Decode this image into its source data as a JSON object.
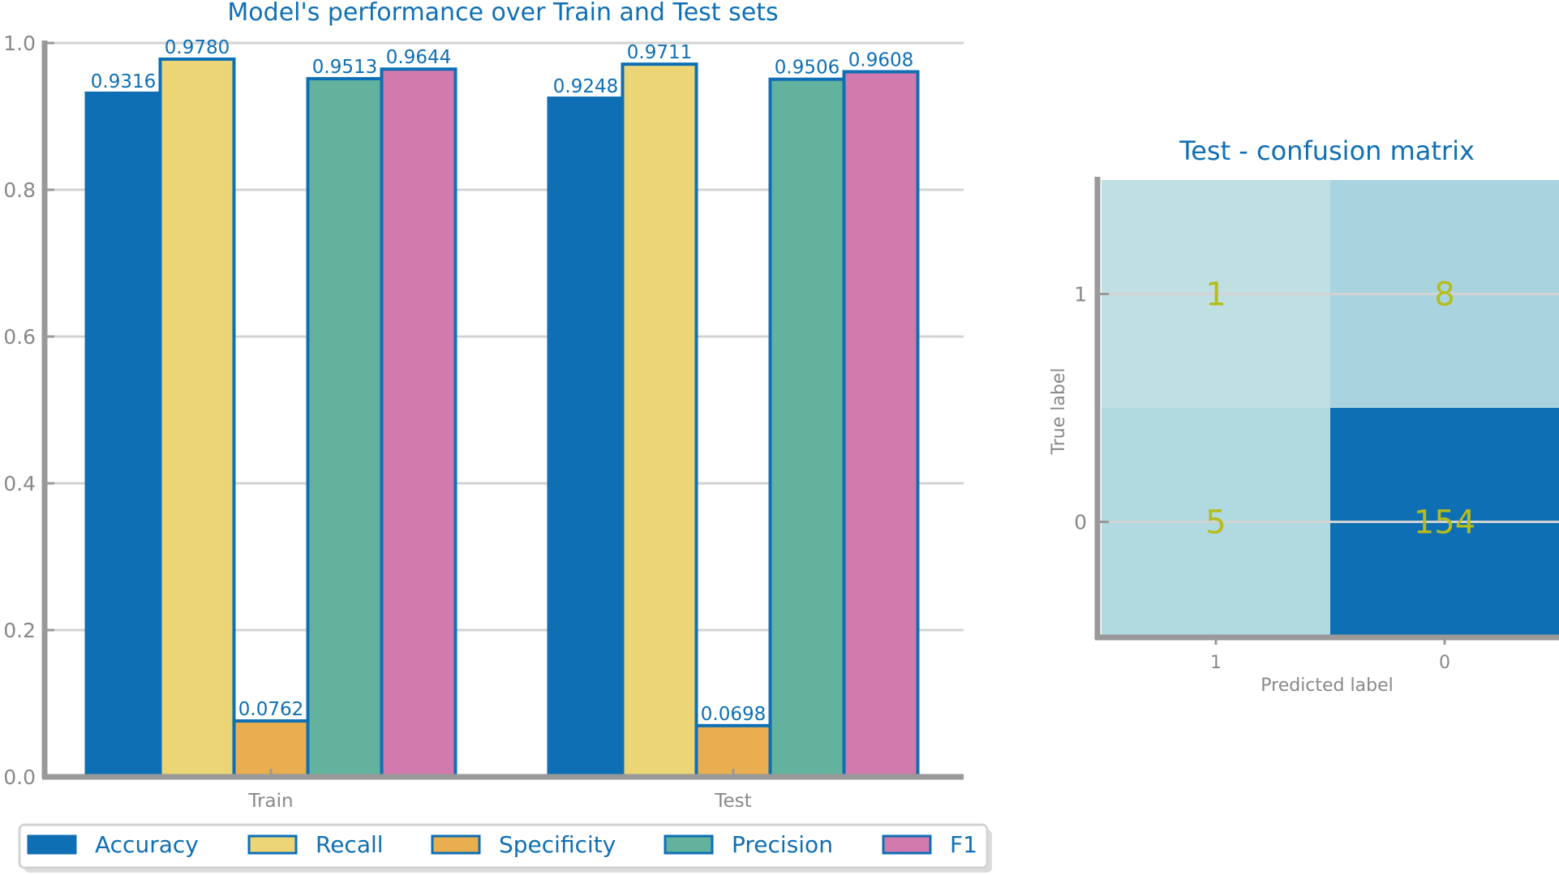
{
  "colors": {
    "accent": "#0e6fb4",
    "axis": "#999999",
    "grid": "#d3d3d3",
    "tick_text": "#888888",
    "annotation": "#b5bd19"
  },
  "chart_data": [
    {
      "type": "bar",
      "title": "Model's performance over Train and Test sets",
      "categories": [
        "Train",
        "Test"
      ],
      "series": [
        {
          "name": "Accuracy",
          "values": [
            0.9316,
            0.9248
          ],
          "color": "#0e6fb4"
        },
        {
          "name": "Recall",
          "values": [
            0.978,
            0.9711
          ],
          "color": "#ebd576"
        },
        {
          "name": "Specificity",
          "values": [
            0.0762,
            0.0698
          ],
          "color": "#e8ae4f"
        },
        {
          "name": "Precision",
          "values": [
            0.9513,
            0.9506
          ],
          "color": "#63b29d"
        },
        {
          "name": "F1",
          "values": [
            0.9644,
            0.9608
          ],
          "color": "#d27aae"
        }
      ],
      "data_labels": [
        [
          "0.9316",
          "0.9248"
        ],
        [
          "0.9780",
          "0.9711"
        ],
        [
          "0.0762",
          "0.0698"
        ],
        [
          "0.9513",
          "0.9506"
        ],
        [
          "0.9644",
          "0.9608"
        ]
      ],
      "ylim": [
        0,
        1.0
      ],
      "yticks": [
        "0.0",
        "0.2",
        "0.4",
        "0.6",
        "0.8",
        "1.0"
      ],
      "ytick_values": [
        0,
        0.2,
        0.4,
        0.6,
        0.8,
        1.0
      ],
      "xlabel": "",
      "ylabel": "",
      "grid": "horizontal",
      "legend_position": "bottom"
    },
    {
      "type": "heatmap",
      "title": "Test - confusion matrix",
      "xlabel": "Predicted label",
      "ylabel": "True label",
      "x_categories": [
        "1",
        "0"
      ],
      "y_categories": [
        "1",
        "0"
      ],
      "values": [
        [
          1,
          8
        ],
        [
          5,
          154
        ]
      ],
      "value_labels": [
        [
          "1",
          "8"
        ],
        [
          "5",
          "154"
        ]
      ],
      "cell_colors": [
        [
          "#c0dfe2",
          "#a9d4df"
        ],
        [
          "#b1d9e0",
          "#0e6fb4"
        ]
      ],
      "annotation_color": "#b5bd19"
    }
  ]
}
